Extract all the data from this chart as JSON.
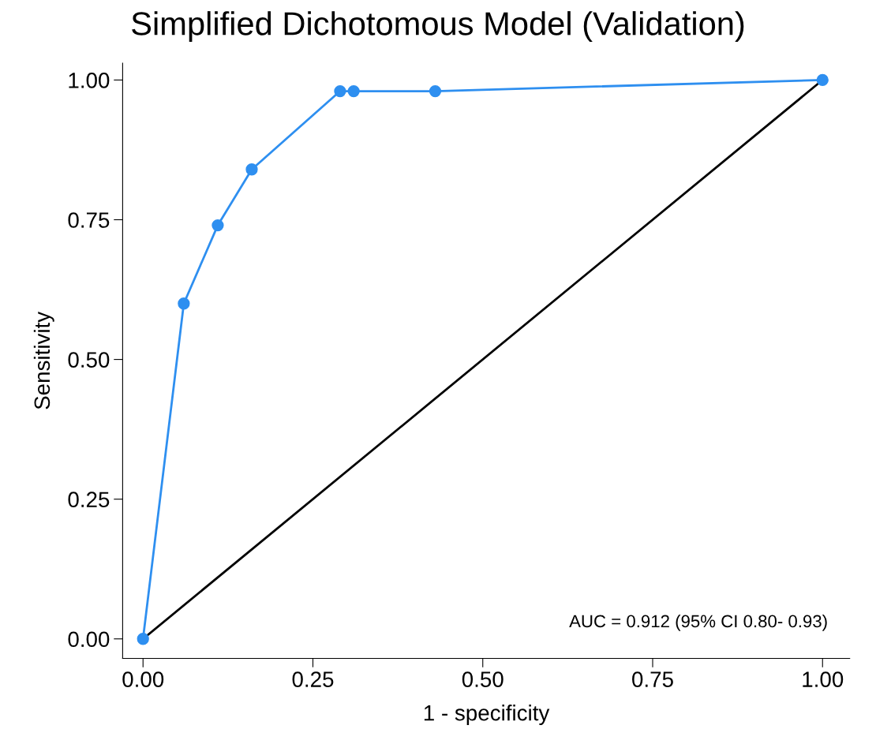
{
  "chart_data": {
    "type": "line",
    "title": "Simplified Dichotomous Model (Validation)",
    "xlabel": "1 - specificity",
    "ylabel": "Sensitivity",
    "series": [
      {
        "color": "#2e8ff0",
        "marker": "circle",
        "x": [
          0,
          0.06,
          0.11,
          0.16,
          0.29,
          0.31,
          0.43,
          1
        ],
        "values": [
          0,
          0.6,
          0.74,
          0.84,
          0.98,
          0.98,
          0.98,
          1
        ]
      },
      {
        "color": "#000000",
        "marker": "none",
        "x": [
          0,
          1
        ],
        "values": [
          0,
          1
        ]
      }
    ],
    "xlim": [
      -0.03,
      1.04
    ],
    "ylim": [
      -0.035,
      1.03
    ],
    "xticks": [
      {
        "value": 0,
        "label": "0.00"
      },
      {
        "value": 0.25,
        "label": "0.25"
      },
      {
        "value": 0.5,
        "label": "0.50"
      },
      {
        "value": 0.75,
        "label": "0.75"
      },
      {
        "value": 1,
        "label": "1.00"
      }
    ],
    "yticks": [
      {
        "value": 0,
        "label": "0.00"
      },
      {
        "value": 0.25,
        "label": "0.25"
      },
      {
        "value": 0.5,
        "label": "0.50"
      },
      {
        "value": 0.75,
        "label": "0.75"
      },
      {
        "value": 1,
        "label": "1.00"
      }
    ],
    "annotations": [
      "AUC = 0.912 (95% CI 0.80- 0.93)"
    ],
    "grid": false,
    "legend": false
  }
}
